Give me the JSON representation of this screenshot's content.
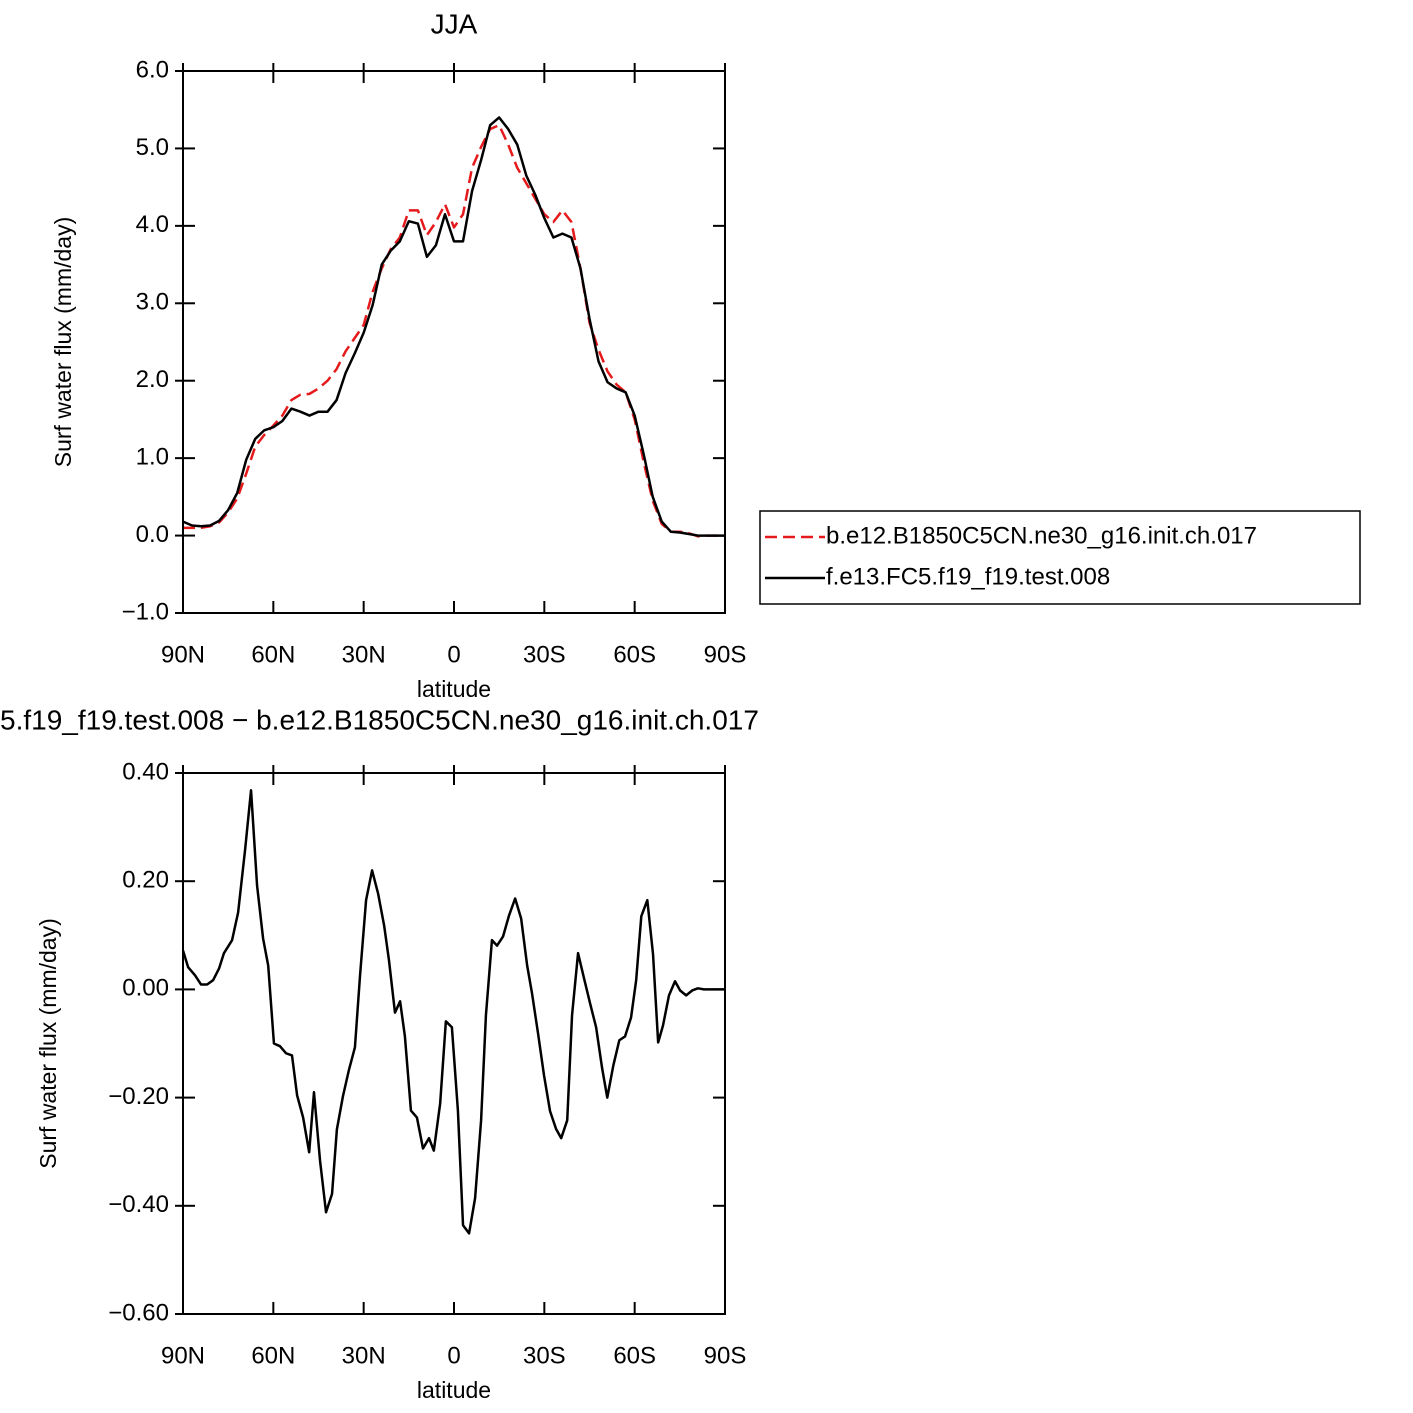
{
  "chart_data": [
    {
      "type": "line",
      "title": "JJA",
      "xlabel": "latitude",
      "ylabel": "Surf water flux (mm/day)",
      "x": [
        90,
        87,
        84,
        81,
        78,
        75,
        72,
        69,
        66,
        63,
        60,
        57,
        54,
        51,
        48,
        45,
        42,
        39,
        36,
        33,
        30,
        27,
        24,
        21,
        18,
        15,
        12,
        9,
        6,
        3,
        0,
        -3,
        -6,
        -9,
        -12,
        -15,
        -18,
        -21,
        -24,
        -27,
        -30,
        -33,
        -36,
        -39,
        -42,
        -45,
        -48,
        -51,
        -54,
        -57,
        -60,
        -63,
        -66,
        -69,
        -72,
        -75,
        -78,
        -81,
        -84,
        -87,
        -90
      ],
      "series": [
        {
          "name": "b.e12.B1850C5CN.ne30_g16.init.ch.017",
          "color": "#e41a1c",
          "dashed": true,
          "values": [
            0.1,
            0.1,
            0.1,
            0.12,
            0.17,
            0.3,
            0.48,
            0.8,
            1.15,
            1.3,
            1.42,
            1.55,
            1.75,
            1.82,
            1.83,
            1.9,
            2.0,
            2.15,
            2.38,
            2.55,
            2.72,
            3.15,
            3.45,
            3.7,
            3.85,
            4.2,
            4.2,
            3.88,
            4.05,
            4.28,
            3.98,
            4.15,
            4.75,
            5.02,
            5.25,
            5.3,
            5.05,
            4.75,
            4.55,
            4.35,
            4.15,
            4.05,
            4.2,
            4.05,
            3.45,
            2.75,
            2.4,
            2.12,
            1.95,
            1.85,
            1.5,
            0.95,
            0.45,
            0.15,
            0.05,
            0.05,
            0.03,
            -0.01,
            0.0,
            0.0,
            0.0
          ]
        },
        {
          "name": "f.e13.FC5.f19_f19.test.008",
          "color": "#000000",
          "dashed": false,
          "values": [
            0.18,
            0.13,
            0.12,
            0.13,
            0.19,
            0.33,
            0.55,
            0.98,
            1.25,
            1.36,
            1.4,
            1.48,
            1.64,
            1.6,
            1.55,
            1.6,
            1.6,
            1.75,
            2.1,
            2.35,
            2.62,
            2.98,
            3.5,
            3.68,
            3.8,
            4.06,
            4.03,
            3.6,
            3.75,
            4.15,
            3.8,
            3.8,
            4.45,
            4.85,
            5.3,
            5.4,
            5.25,
            5.05,
            4.65,
            4.4,
            4.1,
            3.85,
            3.9,
            3.85,
            3.45,
            2.8,
            2.25,
            1.98,
            1.9,
            1.85,
            1.55,
            1.05,
            0.5,
            0.18,
            0.05,
            0.04,
            0.02,
            0.0,
            0.0,
            0.0,
            0.0
          ]
        }
      ],
      "xlim": [
        90,
        -90
      ],
      "xticks": [
        {
          "value": 90,
          "label": "90N"
        },
        {
          "value": 60,
          "label": "60N"
        },
        {
          "value": 30,
          "label": "30N"
        },
        0,
        {
          "value": -30,
          "label": "30S"
        },
        {
          "value": -60,
          "label": "60S"
        },
        {
          "value": -90,
          "label": "90S"
        }
      ],
      "ylim": [
        -1,
        6
      ],
      "yticks": [
        {
          "value": 6,
          "label": "6.0"
        },
        {
          "value": 5,
          "label": "5.0"
        },
        {
          "value": 4,
          "label": "4.0"
        },
        {
          "value": 3,
          "label": "3.0"
        },
        {
          "value": 2,
          "label": "2.0"
        },
        {
          "value": 1,
          "label": "1.0"
        },
        {
          "value": 0,
          "label": "0.0"
        },
        {
          "value": -1,
          "label": "−1.0"
        }
      ],
      "legend": "right"
    },
    {
      "type": "line",
      "title": "5.f19_f19.test.008 − b.e12.B1850C5CN.ne30_g16.init.ch.017",
      "xlabel": "latitude",
      "ylabel": "Surf water flux (mm/day)",
      "x": [
        90.0,
        88.3,
        86.0,
        84.0,
        82.0,
        80.0,
        78.0,
        76.4,
        73.7,
        71.7,
        69.4,
        67.4,
        65.4,
        63.4,
        61.7,
        59.8,
        57.8,
        55.8,
        53.8,
        52.1,
        50.1,
        48.1,
        46.5,
        44.5,
        42.5,
        40.5,
        38.9,
        36.9,
        34.9,
        32.9,
        31.2,
        29.2,
        27.2,
        25.2,
        23.2,
        21.6,
        19.6,
        17.9,
        16.3,
        14.3,
        12.3,
        10.3,
        8.3,
        6.7,
        4.6,
        2.7,
        0.7,
        -1.3,
        -3.0,
        -5.0,
        -7.0,
        -9.0,
        -10.6,
        -12.6,
        -14.3,
        -16.3,
        -18.3,
        -20.3,
        -22.3,
        -24.3,
        -25.9,
        -27.9,
        -29.9,
        -31.9,
        -33.9,
        -35.6,
        -37.6,
        -39.2,
        -41.2,
        -43.2,
        -45.2,
        -47.2,
        -49.2,
        -50.9,
        -52.9,
        -54.9,
        -56.8,
        -58.8,
        -60.5,
        -62.2,
        -64.2,
        -66.1,
        -67.8,
        -69.4,
        -71.4,
        -73.4,
        -75.1,
        -77.1,
        -79.1,
        -81.0,
        -83.0,
        -85.0,
        -87.0,
        -90.0
      ],
      "series": [
        {
          "color": "#000000",
          "dashed": false,
          "values": [
            0.072,
            0.041,
            0.026,
            0.009,
            0.009,
            0.017,
            0.039,
            0.067,
            0.091,
            0.142,
            0.257,
            0.368,
            0.192,
            0.094,
            0.044,
            -0.1,
            -0.105,
            -0.118,
            -0.122,
            -0.196,
            -0.237,
            -0.301,
            -0.19,
            -0.316,
            -0.412,
            -0.378,
            -0.259,
            -0.198,
            -0.149,
            -0.107,
            0.026,
            0.165,
            0.22,
            0.177,
            0.118,
            0.054,
            -0.043,
            -0.022,
            -0.087,
            -0.224,
            -0.237,
            -0.294,
            -0.275,
            -0.298,
            -0.211,
            -0.059,
            -0.07,
            -0.224,
            -0.436,
            -0.451,
            -0.386,
            -0.242,
            -0.048,
            0.091,
            0.081,
            0.098,
            0.137,
            0.168,
            0.131,
            0.044,
            -0.007,
            -0.081,
            -0.159,
            -0.225,
            -0.258,
            -0.275,
            -0.242,
            -0.048,
            0.067,
            0.02,
            -0.026,
            -0.07,
            -0.146,
            -0.2,
            -0.141,
            -0.094,
            -0.087,
            -0.052,
            0.017,
            0.135,
            0.165,
            0.065,
            -0.098,
            -0.067,
            -0.011,
            0.015,
            -0.002,
            -0.011,
            -0.002,
            0.002,
            0.0,
            0.0,
            0.0,
            0.0
          ]
        }
      ],
      "xlim": [
        90,
        -90
      ],
      "xticks": [
        {
          "value": 90,
          "label": "90N"
        },
        {
          "value": 60,
          "label": "60N"
        },
        {
          "value": 30,
          "label": "30N"
        },
        0,
        {
          "value": -30,
          "label": "30S"
        },
        {
          "value": -60,
          "label": "60S"
        },
        {
          "value": -90,
          "label": "90S"
        }
      ],
      "ylim": [
        -0.6,
        0.4
      ],
      "yticks": [
        {
          "value": 0.4,
          "label": "0.40"
        },
        {
          "value": 0.2,
          "label": "0.20"
        },
        {
          "value": 0,
          "label": "0.00"
        },
        {
          "value": -0.2,
          "label": "−0.20"
        },
        {
          "value": -0.4,
          "label": "−0.40"
        },
        {
          "value": -0.6,
          "label": "−0.60"
        }
      ]
    }
  ]
}
